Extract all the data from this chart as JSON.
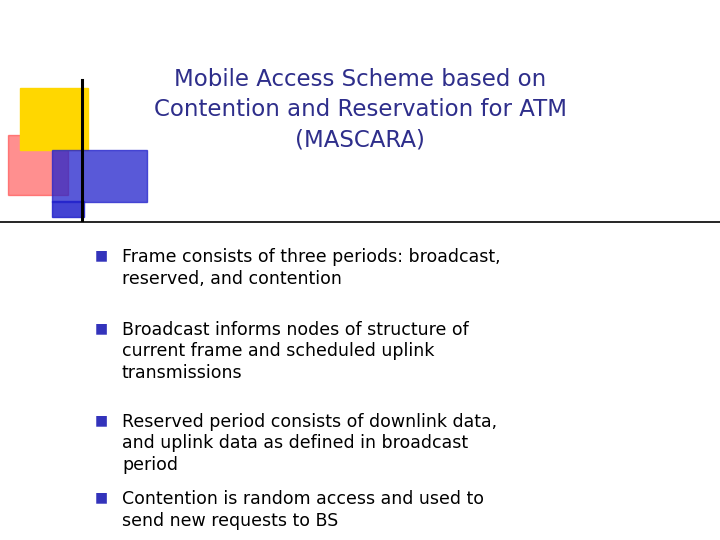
{
  "title_line1": "Mobile Access Scheme based on",
  "title_line2": "Contention and Reservation for ATM",
  "title_line3": "(MASCARA)",
  "title_color": "#2E2E8B",
  "bg_color": "#FFFFFF",
  "bullet_color": "#3333BB",
  "text_color": "#000000",
  "divider_color": "#000000",
  "bullets": [
    "Frame consists of three periods: broadcast,\nreserved, and contention",
    "Broadcast informs nodes of structure of\ncurrent frame and scheduled uplink\ntransmissions",
    "Reserved period consists of downlink data,\nand uplink data as defined in broadcast\nperiod",
    "Contention is random access and used to\nsend new requests to BS"
  ],
  "yellow_color": "#FFD700",
  "red_color": "#FF3333",
  "blue_color": "#2222CC",
  "title_fontsize": 16.5,
  "bullet_fontsize": 12.5,
  "bullet_text_fontsize": 12.5
}
